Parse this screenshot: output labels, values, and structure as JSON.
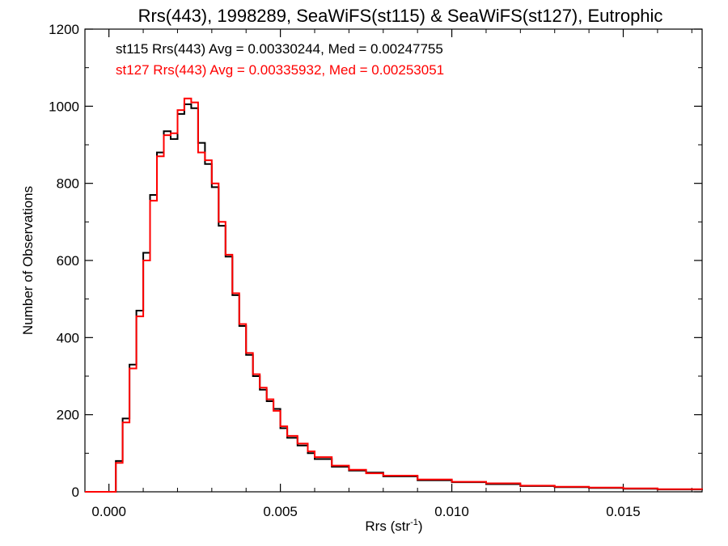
{
  "chart_data": {
    "type": "line",
    "title": "Rrs(443), 1998289, SeaWiFS(st115) & SeaWiFS(st127), Eutrophic",
    "xlabel_main": "Rrs (str",
    "xlabel_sup": "-1",
    "xlabel_close": ")",
    "ylabel": "Number of Observations",
    "xlim": [
      -0.0007,
      0.0173
    ],
    "ylim": [
      0,
      1200
    ],
    "xticks": [
      0.0,
      0.005,
      0.01,
      0.015
    ],
    "xtick_labels": [
      "0.000",
      "0.005",
      "0.010",
      "0.015"
    ],
    "yticks": [
      0,
      200,
      400,
      600,
      800,
      1000,
      1200
    ],
    "ytick_labels": [
      "0",
      "200",
      "400",
      "600",
      "800",
      "1000",
      "1200"
    ],
    "grid": false,
    "legend_placement": "top-left",
    "annotations": [
      {
        "text": "st115 Rrs(443) Avg = 0.00330244, Med = 0.00247755",
        "color": "#000000"
      },
      {
        "text": "st127 Rrs(443) Avg = 0.00335932, Med = 0.00253051",
        "color": "#ff0000"
      }
    ],
    "series": [
      {
        "color": "#000000",
        "points": [
          [
            -0.0007,
            0
          ],
          [
            0.0,
            0
          ],
          [
            0.0002,
            80
          ],
          [
            0.0004,
            190
          ],
          [
            0.0006,
            330
          ],
          [
            0.0008,
            470
          ],
          [
            0.001,
            620
          ],
          [
            0.0012,
            770
          ],
          [
            0.0014,
            880
          ],
          [
            0.0016,
            935
          ],
          [
            0.0018,
            915
          ],
          [
            0.002,
            980
          ],
          [
            0.0022,
            1005
          ],
          [
            0.0024,
            995
          ],
          [
            0.0026,
            905
          ],
          [
            0.0028,
            850
          ],
          [
            0.003,
            790
          ],
          [
            0.0032,
            690
          ],
          [
            0.0034,
            610
          ],
          [
            0.0036,
            510
          ],
          [
            0.0038,
            430
          ],
          [
            0.004,
            355
          ],
          [
            0.0042,
            300
          ],
          [
            0.0044,
            265
          ],
          [
            0.0046,
            235
          ],
          [
            0.0048,
            215
          ],
          [
            0.005,
            165
          ],
          [
            0.0052,
            140
          ],
          [
            0.0055,
            120
          ],
          [
            0.0058,
            100
          ],
          [
            0.006,
            85
          ],
          [
            0.0065,
            65
          ],
          [
            0.007,
            55
          ],
          [
            0.0075,
            50
          ],
          [
            0.008,
            40
          ],
          [
            0.009,
            30
          ],
          [
            0.01,
            25
          ],
          [
            0.011,
            20
          ],
          [
            0.012,
            15
          ],
          [
            0.013,
            12
          ],
          [
            0.014,
            10
          ],
          [
            0.015,
            8
          ],
          [
            0.016,
            6
          ],
          [
            0.0173,
            5
          ]
        ]
      },
      {
        "color": "#ff0000",
        "points": [
          [
            -0.0007,
            0
          ],
          [
            0.0,
            0
          ],
          [
            0.0002,
            75
          ],
          [
            0.0004,
            180
          ],
          [
            0.0006,
            320
          ],
          [
            0.0008,
            455
          ],
          [
            0.001,
            600
          ],
          [
            0.0012,
            755
          ],
          [
            0.0014,
            870
          ],
          [
            0.0016,
            925
          ],
          [
            0.0018,
            930
          ],
          [
            0.002,
            990
          ],
          [
            0.0022,
            1020
          ],
          [
            0.0024,
            1010
          ],
          [
            0.0026,
            880
          ],
          [
            0.0028,
            860
          ],
          [
            0.003,
            800
          ],
          [
            0.0032,
            700
          ],
          [
            0.0034,
            615
          ],
          [
            0.0036,
            515
          ],
          [
            0.0038,
            435
          ],
          [
            0.004,
            360
          ],
          [
            0.0042,
            305
          ],
          [
            0.0044,
            270
          ],
          [
            0.0046,
            240
          ],
          [
            0.0048,
            210
          ],
          [
            0.005,
            170
          ],
          [
            0.0052,
            145
          ],
          [
            0.0055,
            125
          ],
          [
            0.0058,
            105
          ],
          [
            0.006,
            90
          ],
          [
            0.0065,
            68
          ],
          [
            0.007,
            57
          ],
          [
            0.0075,
            48
          ],
          [
            0.008,
            42
          ],
          [
            0.009,
            32
          ],
          [
            0.01,
            26
          ],
          [
            0.011,
            22
          ],
          [
            0.012,
            16
          ],
          [
            0.013,
            13
          ],
          [
            0.014,
            11
          ],
          [
            0.015,
            9
          ],
          [
            0.016,
            7
          ],
          [
            0.0173,
            6
          ]
        ]
      }
    ]
  }
}
